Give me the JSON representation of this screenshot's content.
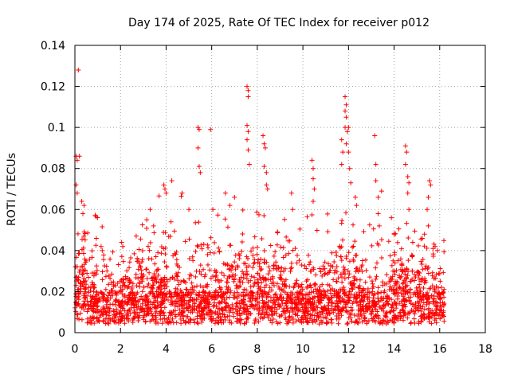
{
  "chart_data": {
    "type": "scatter",
    "title": "Day 174 of 2025, Rate Of TEC Index for receiver p012",
    "xlabel": "GPS time / hours",
    "ylabel": "ROTI / TECUs",
    "xlim": [
      0,
      18
    ],
    "ylim": [
      0,
      0.14
    ],
    "xticks": [
      0,
      2,
      4,
      6,
      8,
      10,
      12,
      14,
      16,
      18
    ],
    "yticks": [
      0,
      0.02,
      0.04,
      0.06,
      0.08,
      0.1,
      0.12,
      0.14
    ],
    "xtick_labels": [
      "0",
      "2",
      "4",
      "6",
      "8",
      "10",
      "12",
      "14",
      "16",
      "18"
    ],
    "ytick_labels": [
      "0",
      "0.02",
      "0.04",
      "0.06",
      "0.08",
      "0.1",
      "0.12",
      "0.14"
    ],
    "grid": true,
    "marker": "+",
    "series_color": "#ff0000",
    "data_range_hours": [
      0,
      16.2
    ],
    "baseline_roti": 0.012,
    "series": [
      {
        "points": [
          [
            0.05,
            0.086
          ],
          [
            0.1,
            0.084
          ],
          [
            0.2,
            0.086
          ],
          [
            0.15,
            0.128
          ],
          [
            0.3,
            0.064
          ],
          [
            0.35,
            0.058
          ],
          [
            0.4,
            0.062
          ],
          [
            0.05,
            0.072
          ],
          [
            0.1,
            0.068
          ],
          [
            1.15,
            0.042
          ],
          [
            1.2,
            0.04
          ],
          [
            2.05,
            0.044
          ],
          [
            2.1,
            0.042
          ],
          [
            3.15,
            0.055
          ],
          [
            3.3,
            0.06
          ],
          [
            3.45,
            0.052
          ],
          [
            3.9,
            0.072
          ],
          [
            3.95,
            0.07
          ],
          [
            4.0,
            0.068
          ],
          [
            4.25,
            0.074
          ],
          [
            4.7,
            0.068
          ],
          [
            5.0,
            0.06
          ],
          [
            5.4,
            0.1
          ],
          [
            5.45,
            0.099
          ],
          [
            5.4,
            0.09
          ],
          [
            5.45,
            0.081
          ],
          [
            5.5,
            0.078
          ],
          [
            5.95,
            0.099
          ],
          [
            6.05,
            0.06
          ],
          [
            6.6,
            0.068
          ],
          [
            6.8,
            0.062
          ],
          [
            7.0,
            0.066
          ],
          [
            7.55,
            0.12
          ],
          [
            7.6,
            0.118
          ],
          [
            7.6,
            0.115
          ],
          [
            7.55,
            0.101
          ],
          [
            7.6,
            0.098
          ],
          [
            7.55,
            0.094
          ],
          [
            7.6,
            0.089
          ],
          [
            7.65,
            0.082
          ],
          [
            8.25,
            0.096
          ],
          [
            8.3,
            0.092
          ],
          [
            8.35,
            0.09
          ],
          [
            8.3,
            0.081
          ],
          [
            8.4,
            0.078
          ],
          [
            8.4,
            0.072
          ],
          [
            8.45,
            0.07
          ],
          [
            9.5,
            0.068
          ],
          [
            9.55,
            0.06
          ],
          [
            10.4,
            0.084
          ],
          [
            10.45,
            0.08
          ],
          [
            10.45,
            0.075
          ],
          [
            10.5,
            0.07
          ],
          [
            10.45,
            0.064
          ],
          [
            11.7,
            0.094
          ],
          [
            11.75,
            0.088
          ],
          [
            11.7,
            0.082
          ],
          [
            11.85,
            0.115
          ],
          [
            11.9,
            0.111
          ],
          [
            11.85,
            0.108
          ],
          [
            11.9,
            0.105
          ],
          [
            11.85,
            0.1
          ],
          [
            11.95,
            0.098
          ],
          [
            12.0,
            0.1
          ],
          [
            11.9,
            0.092
          ],
          [
            12.0,
            0.088
          ],
          [
            12.05,
            0.08
          ],
          [
            12.1,
            0.073
          ],
          [
            12.3,
            0.066
          ],
          [
            12.35,
            0.062
          ],
          [
            13.15,
            0.096
          ],
          [
            13.2,
            0.082
          ],
          [
            13.2,
            0.074
          ],
          [
            13.3,
            0.066
          ],
          [
            13.45,
            0.069
          ],
          [
            13.3,
            0.058
          ],
          [
            13.35,
            0.052
          ],
          [
            14.5,
            0.091
          ],
          [
            14.55,
            0.088
          ],
          [
            14.5,
            0.082
          ],
          [
            14.6,
            0.076
          ],
          [
            14.65,
            0.073
          ],
          [
            14.6,
            0.068
          ],
          [
            14.65,
            0.06
          ],
          [
            15.55,
            0.074
          ],
          [
            15.6,
            0.072
          ],
          [
            15.5,
            0.066
          ],
          [
            15.45,
            0.06
          ],
          [
            15.5,
            0.052
          ],
          [
            15.8,
            0.042
          ],
          [
            15.9,
            0.04
          ]
        ]
      }
    ]
  }
}
